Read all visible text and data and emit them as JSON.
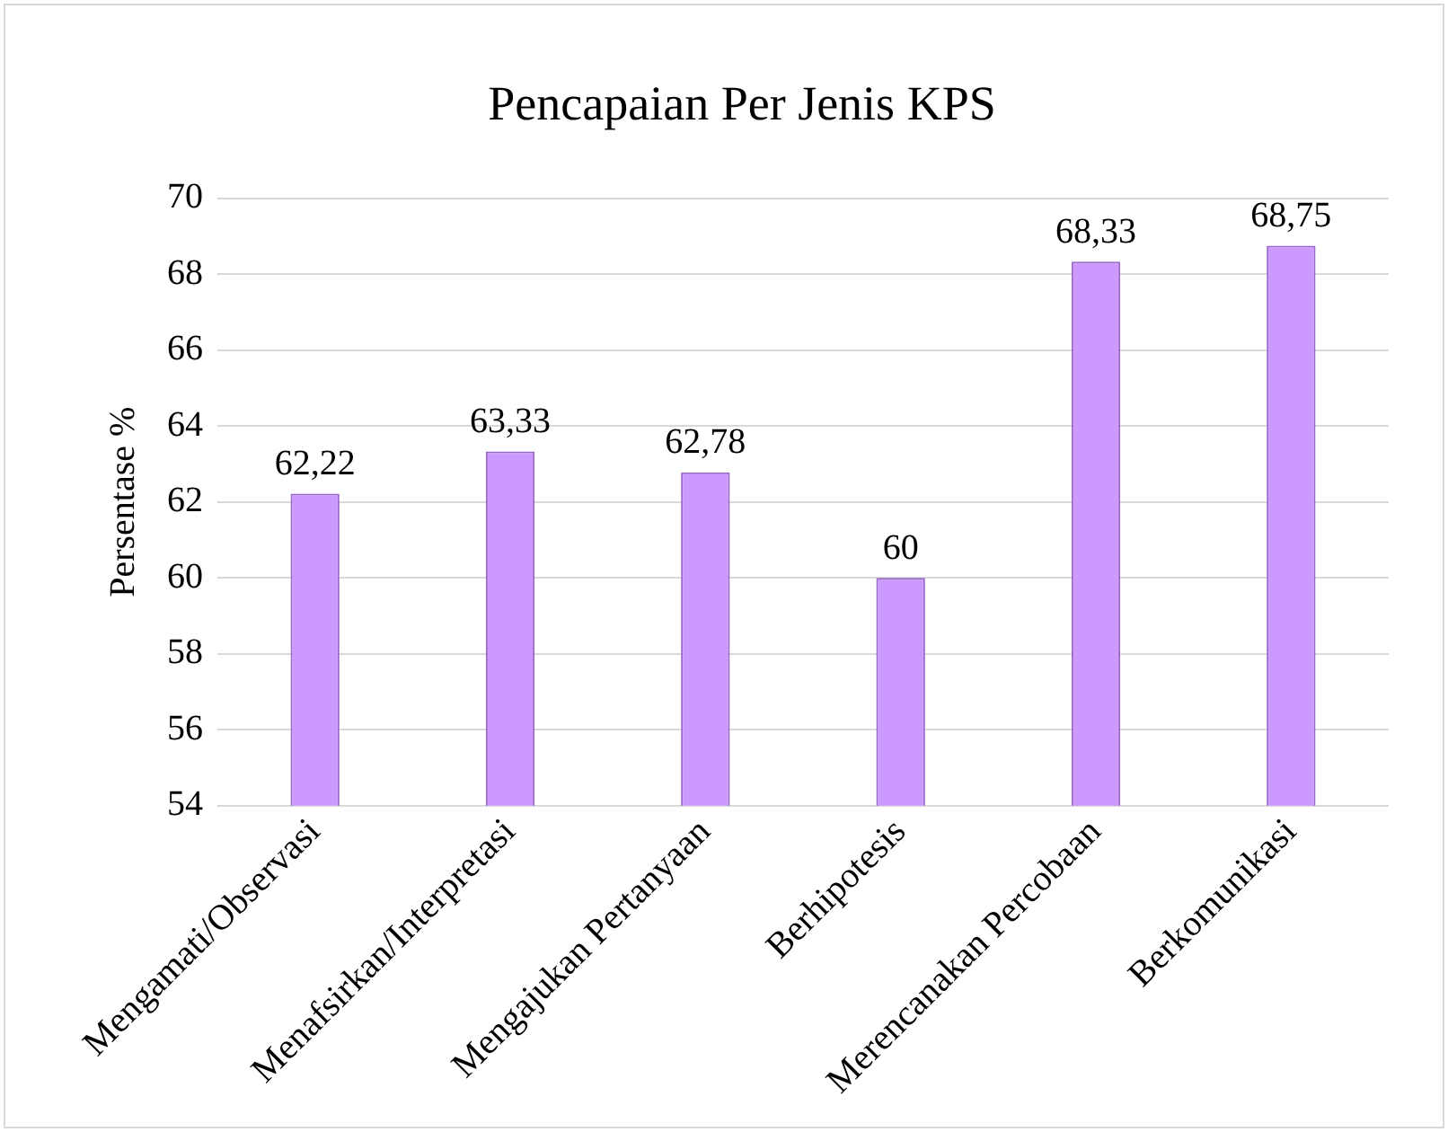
{
  "chart_data": {
    "type": "bar",
    "title": "Pencapaian Per Jenis KPS",
    "ylabel": "Persentase %",
    "categories": [
      "Mengamati/Observasi",
      "Menafsirkan/Interpretasi",
      "Mengajukan Pertanyaan",
      "Berhipotesis",
      "Merencanakan Percobaan",
      "Berkomunikasi"
    ],
    "values": [
      62.22,
      63.33,
      62.78,
      60,
      68.33,
      68.75
    ],
    "value_labels": [
      "62,22",
      "63,33",
      "62,78",
      "60",
      "68,33",
      "68,75"
    ],
    "color": "#cc99ff",
    "ylim": [
      54,
      70
    ],
    "yticks": [
      54,
      56,
      58,
      60,
      62,
      64,
      66,
      68,
      70
    ],
    "grid": "y",
    "legend": false
  }
}
